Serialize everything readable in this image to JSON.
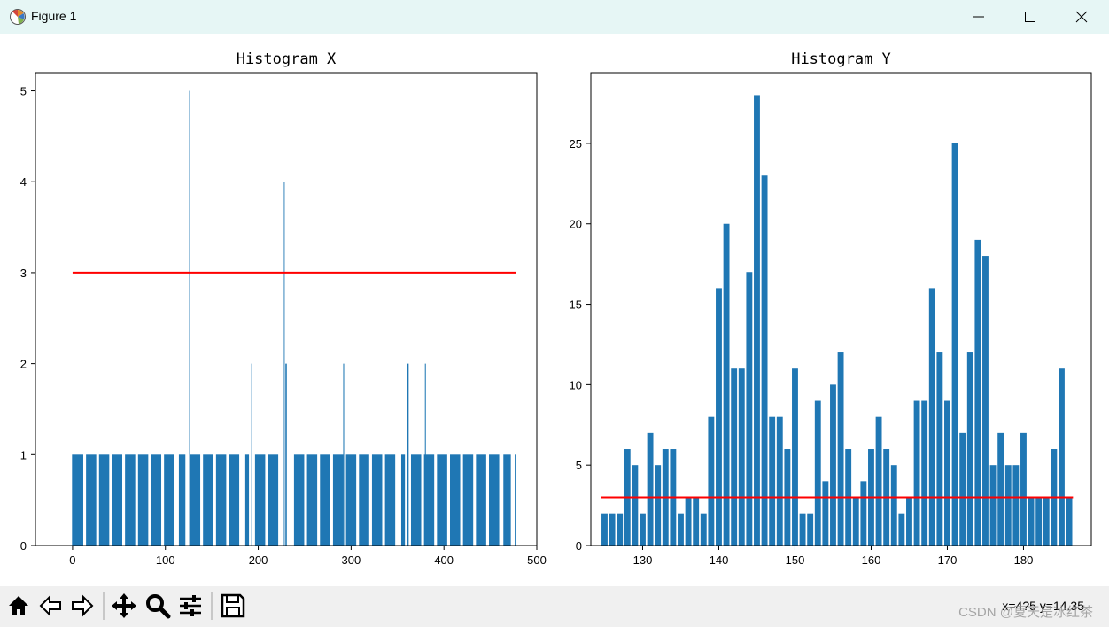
{
  "window": {
    "title": "Figure 1",
    "accent": "#e6f6f5"
  },
  "toolbar": {
    "buttons": [
      {
        "name": "home-button",
        "icon": "home-icon"
      },
      {
        "name": "back-button",
        "icon": "arrow-left-icon"
      },
      {
        "name": "forward-button",
        "icon": "arrow-right-icon"
      },
      {
        "name": "pan-button",
        "icon": "move-icon"
      },
      {
        "name": "zoom-button",
        "icon": "magnifier-icon"
      },
      {
        "name": "configure-subplots-button",
        "icon": "sliders-icon"
      },
      {
        "name": "save-button",
        "icon": "floppy-icon"
      }
    ],
    "coords_text": "x=4?5 y=14.35",
    "watermark": "CSDN @夏天是冰红茶"
  },
  "chart_data": [
    {
      "type": "bar",
      "title": "Histogram X",
      "xlim": [
        -40,
        500
      ],
      "ylim": [
        0,
        5.2
      ],
      "xticks": [
        0,
        100,
        200,
        300,
        400,
        500
      ],
      "yticks": [
        0,
        1,
        2,
        3,
        4,
        5
      ],
      "bar_color": "#1f77b4",
      "baseline": {
        "y": 3,
        "x": [
          0,
          478
        ],
        "color": "#ff0000"
      },
      "x": [
        0,
        6,
        20,
        34,
        48,
        62,
        76,
        90,
        104,
        118,
        126,
        132,
        146,
        160,
        174,
        188,
        193,
        202,
        216,
        228,
        230,
        244,
        258,
        272,
        286,
        292,
        300,
        314,
        328,
        342,
        356,
        361,
        370,
        380,
        384,
        398,
        412,
        426,
        440,
        454,
        468,
        477
      ],
      "values": [
        1,
        1,
        1,
        1,
        1,
        1,
        1,
        1,
        1,
        1,
        5,
        1,
        1,
        1,
        1,
        1,
        2,
        1,
        1,
        4,
        2,
        1,
        1,
        1,
        1,
        2,
        1,
        1,
        1,
        1,
        1,
        2,
        1,
        2,
        1,
        1,
        1,
        1,
        1,
        1,
        1,
        1
      ],
      "widths": [
        1.2,
        11,
        11,
        11,
        11,
        11,
        11,
        11,
        11,
        7,
        0.8,
        11,
        11,
        11,
        11,
        4,
        1,
        11,
        11,
        0.8,
        1.5,
        11,
        11,
        11,
        11,
        1,
        11,
        11,
        11,
        11,
        4,
        2,
        11,
        1,
        11,
        11,
        11,
        11,
        11,
        11,
        8,
        1.5
      ]
    },
    {
      "type": "bar",
      "title": "Histogram Y",
      "xlim": [
        123.2,
        188.9
      ],
      "ylim": [
        0,
        29.4
      ],
      "xticks": [
        130,
        140,
        150,
        160,
        170,
        180
      ],
      "yticks": [
        0,
        5,
        10,
        15,
        20,
        25
      ],
      "bar_color": "#1f77b4",
      "baseline": {
        "y": 3,
        "x": [
          124.5,
          186.5
        ],
        "color": "#ff0000"
      },
      "x": [
        125,
        126,
        127,
        128,
        129,
        130,
        131,
        132,
        133,
        134,
        135,
        136,
        137,
        138,
        139,
        140,
        141,
        142,
        143,
        144,
        145,
        146,
        147,
        148,
        149,
        150,
        151,
        152,
        153,
        154,
        155,
        156,
        157,
        158,
        159,
        160,
        161,
        162,
        163,
        164,
        165,
        166,
        167,
        168,
        169,
        170,
        171,
        172,
        173,
        174,
        175,
        176,
        177,
        178,
        179,
        180,
        181,
        182,
        183,
        184,
        185,
        186
      ],
      "values": [
        2,
        2,
        2,
        6,
        5,
        2,
        7,
        5,
        6,
        6,
        2,
        3,
        3,
        2,
        8,
        16,
        20,
        11,
        11,
        17,
        28,
        23,
        8,
        8,
        6,
        11,
        2,
        2,
        9,
        4,
        10,
        12,
        6,
        3,
        4,
        6,
        8,
        6,
        5,
        2,
        3,
        9,
        9,
        16,
        12,
        9,
        25,
        7,
        12,
        19,
        18,
        5,
        7,
        5,
        5,
        7,
        3,
        3,
        3,
        6,
        11,
        3
      ],
      "width": 0.8
    }
  ]
}
